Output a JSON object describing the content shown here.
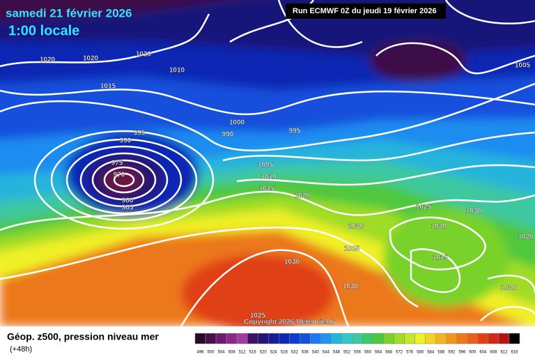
{
  "header": {
    "date": "samedi 21 février 2026",
    "time": "1:00 locale",
    "run": "Run ECMWF 0Z du jeudi 19 février 2026"
  },
  "isobar_labels": [
    "1020",
    "1020",
    "1020",
    "1010",
    "1015",
    "995",
    "990",
    "975",
    "970",
    "980",
    "985",
    "1000",
    "990",
    "995",
    "1005",
    "1010",
    "1015",
    "1020",
    "1025",
    "1030",
    "1030",
    "1020",
    "1025",
    "1030",
    "1015",
    "1030",
    "1020",
    "1025",
    "1005",
    "1020"
  ],
  "copyright": "Copyright 2026 Meteociel.fr",
  "legend": {
    "title": "Géop. z500, pression niveau mer",
    "lead": "(+48h)",
    "scale": [
      496,
      500,
      504,
      508,
      512,
      516,
      520,
      524,
      528,
      532,
      536,
      540,
      544,
      548,
      552,
      556,
      560,
      564,
      568,
      572,
      576,
      580,
      584,
      588,
      592,
      596,
      600,
      604,
      608,
      612,
      616
    ],
    "colors": [
      "#2a0a2a",
      "#4a0f4a",
      "#6e1a6e",
      "#8c288c",
      "#a23ca2",
      "#3c1464",
      "#281478",
      "#141e96",
      "#0a28b4",
      "#0a3cd2",
      "#1450dc",
      "#1e78f0",
      "#1e96f0",
      "#28b4dc",
      "#32c8c8",
      "#3cc8a0",
      "#3cc864",
      "#50c83c",
      "#78d22a",
      "#a0dc28",
      "#c8e628",
      "#f0f028",
      "#f5d223",
      "#f5b41e",
      "#f0961e",
      "#ec781c",
      "#e8601c",
      "#e04018",
      "#d22814",
      "#b41410",
      "#000000"
    ]
  }
}
